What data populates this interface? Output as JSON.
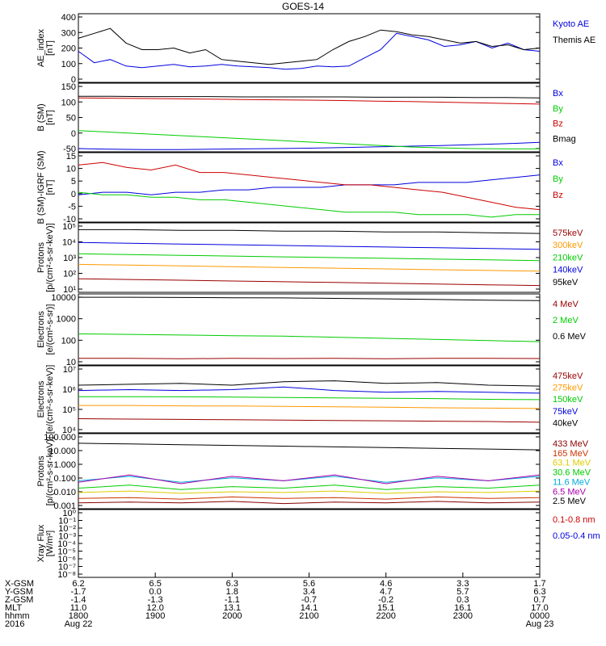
{
  "title": "GOES-14",
  "colors": {
    "black": "#000000",
    "red": "#cc0000",
    "green": "#00cc00",
    "blue": "#0000dd",
    "orange": "#ff9900",
    "darkred": "#990000",
    "yellow": "#ddcc00",
    "cyan": "#00aadd",
    "purple": "#aa00aa",
    "maroon": "#880000"
  },
  "chart_data": [
    {
      "type": "line",
      "ylabel": [
        "AE_index",
        "[nT]"
      ],
      "yticks": [
        "400",
        "300",
        "200",
        "100",
        "0"
      ],
      "ylim": [
        0,
        420
      ],
      "series": [
        {
          "name": "Kyoto AE",
          "color": "#0000dd",
          "values": [
            190,
            120,
            140,
            100,
            90,
            100,
            110,
            95,
            100,
            110,
            100,
            95,
            90,
            80,
            85,
            100,
            95,
            100,
            150,
            200,
            300,
            280,
            260,
            220,
            230,
            250,
            210,
            240,
            200,
            190
          ]
        },
        {
          "name": "Themis AE",
          "color": "#000000",
          "values": [
            270,
            300,
            330,
            240,
            200,
            200,
            210,
            180,
            200,
            140,
            130,
            120,
            110,
            120,
            130,
            140,
            200,
            250,
            280,
            320,
            310,
            290,
            280,
            260,
            240,
            250,
            220,
            230,
            200,
            210
          ]
        }
      ]
    },
    {
      "type": "line",
      "ylabel": [
        "B (SM)",
        "[nT]"
      ],
      "yticks": [
        "150",
        "100",
        "50",
        "0",
        "-50"
      ],
      "ylim": [
        -55,
        155
      ],
      "series": [
        {
          "name": "Bx",
          "color": "#0000dd",
          "values": [
            -45,
            -47,
            -48,
            -48,
            -47,
            -46,
            -45,
            -44,
            -42,
            -40,
            -38,
            -36,
            -33,
            -30,
            -26
          ]
        },
        {
          "name": "By",
          "color": "#00cc00",
          "values": [
            10,
            5,
            0,
            -5,
            -10,
            -15,
            -20,
            -25,
            -30,
            -35,
            -40,
            -43,
            -45,
            -46,
            -46
          ]
        },
        {
          "name": "Bz",
          "color": "#cc0000",
          "values": [
            110,
            109,
            108,
            107,
            106,
            105,
            104,
            103,
            102,
            100,
            99,
            97,
            95,
            93,
            91
          ]
        },
        {
          "name": "Bmag",
          "color": "#000000",
          "values": [
            115,
            115,
            114,
            114,
            114,
            113,
            113,
            113,
            113,
            112,
            112,
            112,
            111,
            111,
            110
          ]
        }
      ]
    },
    {
      "type": "line",
      "ylabel": [
        "B (SM)-IGRF (SM)",
        "[nT]"
      ],
      "yticks": [
        "15",
        "10",
        "5",
        "0",
        "-5",
        "-10"
      ],
      "ylim": [
        -12,
        16
      ],
      "series": [
        {
          "name": "Bx",
          "color": "#0000dd",
          "values": [
            -1,
            0,
            0,
            -1,
            0,
            0,
            1,
            1,
            2,
            2,
            2,
            3,
            3,
            3,
            4,
            4,
            4,
            5,
            6,
            7
          ]
        },
        {
          "name": "By",
          "color": "#00cc00",
          "values": [
            0,
            -1,
            -1,
            -2,
            -2,
            -3,
            -3,
            -4,
            -5,
            -6,
            -7,
            -8,
            -8,
            -8,
            -9,
            -9,
            -9,
            -10,
            -9,
            -9
          ]
        },
        {
          "name": "Bz",
          "color": "#cc0000",
          "values": [
            11,
            12,
            10,
            9,
            11,
            8,
            8,
            7,
            6,
            5,
            4,
            3,
            3,
            2,
            1,
            0,
            -2,
            -4,
            -6,
            -7
          ]
        }
      ]
    },
    {
      "type": "line",
      "log": true,
      "ylabel": [
        "Protons",
        "[p/(cm²-s-sr-keV)]"
      ],
      "yticks": [
        "10⁵",
        "10⁴",
        "10³",
        "10²",
        "10¹"
      ],
      "ylim": [
        0.7,
        5.3
      ],
      "series": [
        {
          "name": "575keV",
          "color": "#990000",
          "values": [
            1.6,
            1.55,
            1.5,
            1.45,
            1.4,
            1.35,
            1.3,
            1.25,
            1.2,
            1.15
          ]
        },
        {
          "name": "300keV",
          "color": "#ff9900",
          "values": [
            2.55,
            2.5,
            2.45,
            2.4,
            2.35,
            2.3,
            2.25,
            2.2,
            2.15,
            2.1
          ]
        },
        {
          "name": "210keV",
          "color": "#00cc00",
          "values": [
            3.25,
            3.2,
            3.15,
            3.1,
            3.05,
            3.0,
            2.95,
            2.9,
            2.85,
            2.8
          ]
        },
        {
          "name": "140keV",
          "color": "#0000dd",
          "values": [
            4.0,
            3.95,
            3.9,
            3.85,
            3.8,
            3.75,
            3.7,
            3.65,
            3.6,
            3.55
          ]
        },
        {
          "name": "95keV",
          "color": "#000000",
          "values": [
            4.85,
            4.85,
            4.8,
            4.8,
            4.75,
            4.75,
            4.7,
            4.7,
            4.65,
            4.6
          ]
        }
      ]
    },
    {
      "type": "line",
      "log": true,
      "ylabel": [
        "Electrons",
        "[e/(cm²-s-sr)]"
      ],
      "yticks": [
        "10000",
        "1000",
        "100",
        "10"
      ],
      "ylim": [
        0.9,
        4.1
      ],
      "series": [
        {
          "name": "4 MeV",
          "color": "#990000",
          "values": [
            1.2,
            1.2,
            1.18,
            1.2,
            1.19,
            1.2,
            1.18,
            1.2,
            1.2,
            1.19
          ]
        },
        {
          "name": "2 MeV",
          "color": "#00cc00",
          "values": [
            2.3,
            2.28,
            2.25,
            2.22,
            2.2,
            2.15,
            2.1,
            2.05,
            2.0,
            1.95
          ]
        },
        {
          "name": "0.6 MeV",
          "color": "#000000",
          "values": [
            3.95,
            3.95,
            3.94,
            3.93,
            3.92,
            3.9,
            3.88,
            3.85,
            3.82,
            3.8
          ]
        }
      ]
    },
    {
      "type": "line",
      "log": true,
      "ylabel": [
        "Electrons",
        "[e/(cm²-s-sr-keV)]"
      ],
      "yticks": [
        "10⁷",
        "10⁶",
        "10⁵",
        "10⁴"
      ],
      "ylim": [
        3.3,
        7.1
      ],
      "series": [
        {
          "name": "475keV",
          "color": "#990000",
          "values": [
            4.1,
            4.08,
            4.06,
            4.04,
            4.02,
            4.0,
            3.98,
            3.96,
            3.94,
            3.9
          ]
        },
        {
          "name": "275keV",
          "color": "#ff9900",
          "values": [
            4.85,
            4.85,
            4.83,
            4.82,
            4.8,
            4.78,
            4.75,
            4.72,
            4.7,
            4.68
          ]
        },
        {
          "name": "150keV",
          "color": "#00cc00",
          "values": [
            5.35,
            5.35,
            5.34,
            5.33,
            5.3,
            5.28,
            5.26,
            5.24,
            5.2,
            5.18
          ]
        },
        {
          "name": "75keV",
          "color": "#0000dd",
          "values": [
            5.7,
            5.75,
            5.7,
            5.75,
            5.9,
            5.7,
            5.6,
            5.65,
            5.6,
            5.55
          ]
        },
        {
          "name": "40keV",
          "color": "#000000",
          "values": [
            6.0,
            6.05,
            6.1,
            6.0,
            6.2,
            6.25,
            6.1,
            6.15,
            6.0,
            5.95
          ]
        }
      ]
    },
    {
      "type": "line",
      "log": true,
      "ylabel": [
        "Protons",
        "[p/(cm²-s-sr-keV)]"
      ],
      "yticks": [
        "100.000",
        "10.000",
        "1.000",
        "0.100",
        "0.010",
        "0.001"
      ],
      "ylim": [
        -3.1,
        2.0
      ],
      "series": [
        {
          "name": "433 MeV",
          "color": "#880000",
          "values": [
            -2.7,
            -2.65,
            -2.7,
            -2.6,
            -2.75,
            -2.65,
            -2.7,
            -2.6,
            -2.7,
            -2.65
          ]
        },
        {
          "name": "165 MeV",
          "color": "#cc3300",
          "values": [
            -2.4,
            -2.35,
            -2.45,
            -2.3,
            -2.4,
            -2.35,
            -2.45,
            -2.3,
            -2.4,
            -2.35
          ]
        },
        {
          "name": "63.1 MeV",
          "color": "#ddcc00",
          "values": [
            -2.0,
            -1.9,
            -2.05,
            -1.95,
            -2.0,
            -1.9,
            -2.05,
            -1.95,
            -2.0,
            -1.9
          ]
        },
        {
          "name": "30.6 MeV",
          "color": "#00cc00",
          "values": [
            -1.7,
            -1.5,
            -1.8,
            -1.6,
            -1.7,
            -1.5,
            -1.8,
            -1.6,
            -1.7,
            -1.5
          ]
        },
        {
          "name": "11.6 MeV",
          "color": "#00aadd",
          "values": [
            -1.2,
            -0.9,
            -1.3,
            -1.0,
            -1.2,
            -0.9,
            -1.3,
            -1.0,
            -1.2,
            -0.9
          ]
        },
        {
          "name": "6.5 MeV",
          "color": "#aa00aa",
          "values": [
            -1.3,
            -0.8,
            -1.4,
            -0.9,
            -1.2,
            -0.8,
            -1.4,
            -0.9,
            -1.2,
            -0.8
          ]
        },
        {
          "name": "2.5 MeV",
          "color": "#000000",
          "values": [
            1.35,
            1.3,
            1.25,
            1.2,
            1.15,
            1.1,
            1.05,
            1.0,
            0.95,
            0.9
          ]
        }
      ]
    },
    {
      "type": "line",
      "log": true,
      "ylabel": [
        "Xray Flux",
        "[W/m²]"
      ],
      "yticks": [
        "10⁰",
        "10⁻¹",
        "10⁻²",
        "10⁻³",
        "10⁻⁴",
        "10⁻⁵",
        "10⁻⁶",
        "10⁻⁷",
        "10⁻⁸"
      ],
      "ylim": [
        -8,
        0
      ],
      "series": [
        {
          "name": "0.1-0.8 nm",
          "color": "#cc0000",
          "values": []
        },
        {
          "name": "0.05-0.4 nm",
          "color": "#0000dd",
          "values": []
        }
      ]
    }
  ],
  "xaxis": {
    "ticks": [
      "1800",
      "1900",
      "2000",
      "2100",
      "2200",
      "2300",
      "0000"
    ],
    "rows": [
      {
        "label": "X-GSM",
        "values": [
          "6.2",
          "6.5",
          "6.3",
          "5.6",
          "4.6",
          "3.3",
          "1.7"
        ]
      },
      {
        "label": "Y-GSM",
        "values": [
          "-1.7",
          "0.0",
          "1.8",
          "3.4",
          "4.7",
          "5.7",
          "6.3"
        ]
      },
      {
        "label": "Z-GSM",
        "values": [
          "-1.4",
          "-1.3",
          "-1.1",
          "-0.7",
          "-0.2",
          "0.3",
          "0.7"
        ]
      },
      {
        "label": "MLT",
        "values": [
          "11.0",
          "12.0",
          "13.1",
          "14.1",
          "15.1",
          "16.1",
          "17.0"
        ]
      },
      {
        "label": "hhmm",
        "values": [
          "1800",
          "1900",
          "2000",
          "2100",
          "2200",
          "2300",
          "0000"
        ]
      },
      {
        "label": "2016",
        "values": [
          "Aug 22",
          "",
          "",
          "",
          "",
          "",
          "Aug 23"
        ]
      }
    ]
  }
}
